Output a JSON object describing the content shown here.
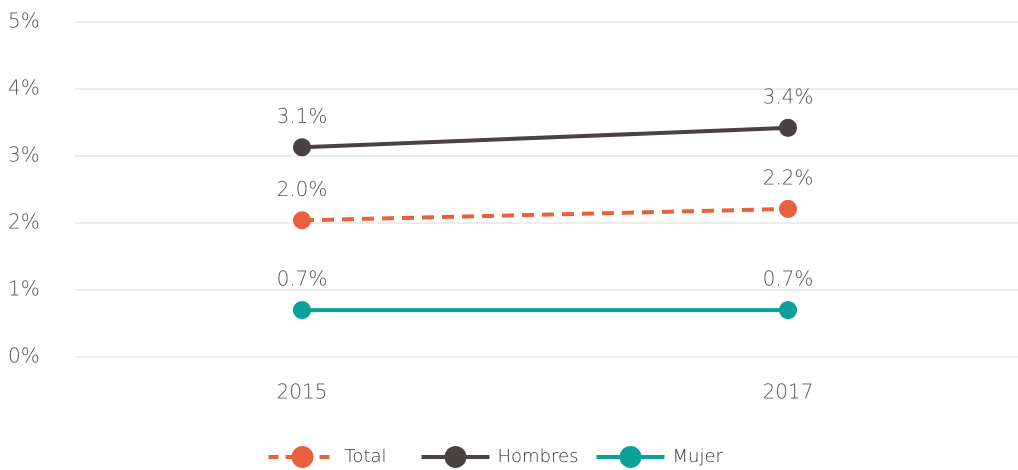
{
  "chart_data": {
    "type": "line",
    "categories": [
      "2015",
      "2017"
    ],
    "series": [
      {
        "name": "Total",
        "color": "#e8603c",
        "dashed": true,
        "values": [
          2.04,
          2.21
        ],
        "value_labels": [
          "2.0%",
          "2.2%"
        ]
      },
      {
        "name": "Hombres",
        "color": "#4a4143",
        "dashed": false,
        "values": [
          3.13,
          3.42
        ],
        "value_labels": [
          "3.1%",
          "3.4%"
        ]
      },
      {
        "name": "Mujer",
        "color": "#0aa19a",
        "dashed": false,
        "values": [
          0.7,
          0.7
        ],
        "value_labels": [
          "0.7%",
          "0.7%"
        ]
      }
    ],
    "ylim": [
      0,
      5
    ],
    "yticks": [
      {
        "value": 0,
        "label": "0%"
      },
      {
        "value": 1,
        "label": "1%"
      },
      {
        "value": 2,
        "label": "2%"
      },
      {
        "value": 3,
        "label": "3%"
      },
      {
        "value": 4,
        "label": "4%"
      },
      {
        "value": 5,
        "label": "5%"
      }
    ],
    "grid": true,
    "legend": "bottom"
  }
}
